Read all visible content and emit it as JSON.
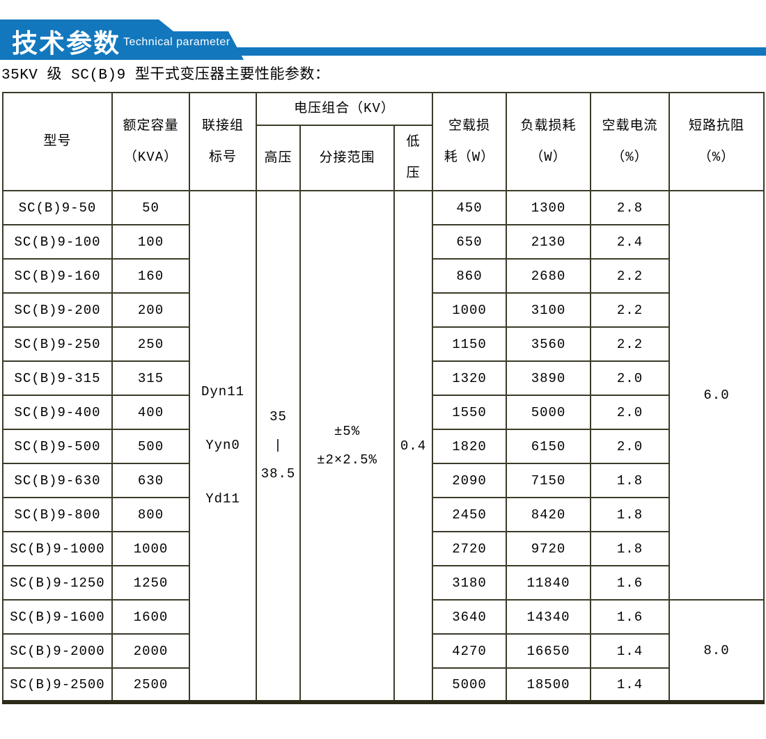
{
  "banner": {
    "title_cn": "技术参数",
    "title_en": "Technical parameter",
    "accent_color": "#1277bd"
  },
  "intro": {
    "title": "35KV 级 SC(B)9 型干式变压器主要性能参数："
  },
  "table": {
    "header": {
      "model": "型号",
      "capacity": "额定容量\n（KVA）",
      "connection": "联接组\n标号",
      "voltage_group": "电压组合（KV）",
      "hv": "高压",
      "tap_range": "分接范围",
      "lv": "低\n压",
      "no_load_loss": "空载损\n耗（W）",
      "load_loss": "负载损耗\n（W）",
      "no_load_current": "空载电流\n（%）",
      "impedance": "短路抗阻\n（%）"
    },
    "merged": {
      "connection": "Dyn11\nYyn0\nYd11",
      "hv": "35\n|\n38.5",
      "tap_range": "±5%\n±2×2.5%",
      "lv": "0.4",
      "impedance_group1": "6.0",
      "impedance_group1_rows": 12,
      "impedance_group2": "8.0",
      "impedance_group2_rows": 3
    },
    "rows": [
      {
        "model": "SC(B)9-50",
        "capacity": "50",
        "no_load_loss": "450",
        "load_loss": "1300",
        "no_load_current": "2.8"
      },
      {
        "model": "SC(B)9-100",
        "capacity": "100",
        "no_load_loss": "650",
        "load_loss": "2130",
        "no_load_current": "2.4"
      },
      {
        "model": "SC(B)9-160",
        "capacity": "160",
        "no_load_loss": "860",
        "load_loss": "2680",
        "no_load_current": "2.2"
      },
      {
        "model": "SC(B)9-200",
        "capacity": "200",
        "no_load_loss": "1000",
        "load_loss": "3100",
        "no_load_current": "2.2"
      },
      {
        "model": "SC(B)9-250",
        "capacity": "250",
        "no_load_loss": "1150",
        "load_loss": "3560",
        "no_load_current": "2.2"
      },
      {
        "model": "SC(B)9-315",
        "capacity": "315",
        "no_load_loss": "1320",
        "load_loss": "3890",
        "no_load_current": "2.0"
      },
      {
        "model": "SC(B)9-400",
        "capacity": "400",
        "no_load_loss": "1550",
        "load_loss": "5000",
        "no_load_current": "2.0"
      },
      {
        "model": "SC(B)9-500",
        "capacity": "500",
        "no_load_loss": "1820",
        "load_loss": "6150",
        "no_load_current": "2.0"
      },
      {
        "model": "SC(B)9-630",
        "capacity": "630",
        "no_load_loss": "2090",
        "load_loss": "7150",
        "no_load_current": "1.8"
      },
      {
        "model": "SC(B)9-800",
        "capacity": "800",
        "no_load_loss": "2450",
        "load_loss": "8420",
        "no_load_current": "1.8"
      },
      {
        "model": "SC(B)9-1000",
        "capacity": "1000",
        "no_load_loss": "2720",
        "load_loss": "9720",
        "no_load_current": "1.8"
      },
      {
        "model": "SC(B)9-1250",
        "capacity": "1250",
        "no_load_loss": "3180",
        "load_loss": "11840",
        "no_load_current": "1.6"
      },
      {
        "model": "SC(B)9-1600",
        "capacity": "1600",
        "no_load_loss": "3640",
        "load_loss": "14340",
        "no_load_current": "1.6"
      },
      {
        "model": "SC(B)9-2000",
        "capacity": "2000",
        "no_load_loss": "4270",
        "load_loss": "16650",
        "no_load_current": "1.4"
      },
      {
        "model": "SC(B)9-2500",
        "capacity": "2500",
        "no_load_loss": "5000",
        "load_loss": "18500",
        "no_load_current": "1.4"
      }
    ]
  }
}
